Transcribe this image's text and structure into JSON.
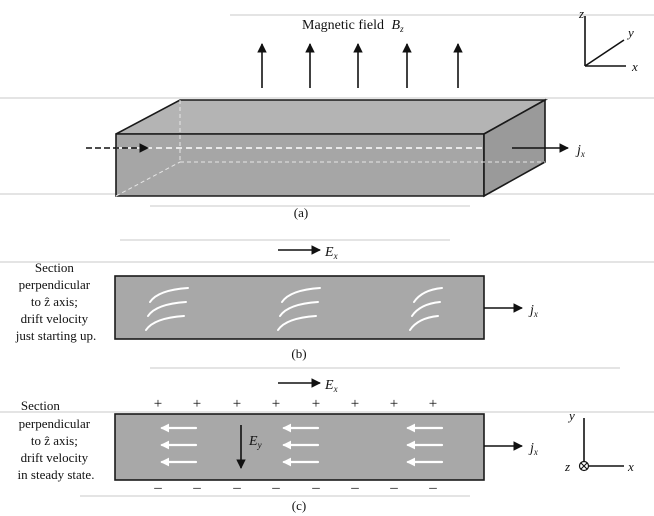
{
  "panel_a": {
    "field_label": "Magnetic field",
    "field_symbol": "B",
    "field_sub": "z",
    "current_symbol": "j",
    "current_sub": "x",
    "axes": {
      "z": "z",
      "y": "y",
      "x": "x"
    },
    "caption": "(a)"
  },
  "panel_b": {
    "efield_symbol": "E",
    "efield_sub": "x",
    "note_lines": [
      "Section",
      "perpendicular",
      "to ẑ axis;",
      "drift velocity",
      "just starting up."
    ],
    "current_symbol": "j",
    "current_sub": "x",
    "caption": "(b)"
  },
  "panel_c": {
    "efield_symbol": "E",
    "efield_sub": "x",
    "note_lines": [
      "Section",
      "perpendicular",
      "to ẑ axis;",
      "drift velocity",
      "in steady state."
    ],
    "plus_sign": "+",
    "minus_sign": "–",
    "ey_symbol": "E",
    "ey_sub": "y",
    "current_symbol": "j",
    "current_sub": "x",
    "axes": {
      "y": "y",
      "z": "z",
      "x": "x"
    },
    "caption": "(c)"
  }
}
